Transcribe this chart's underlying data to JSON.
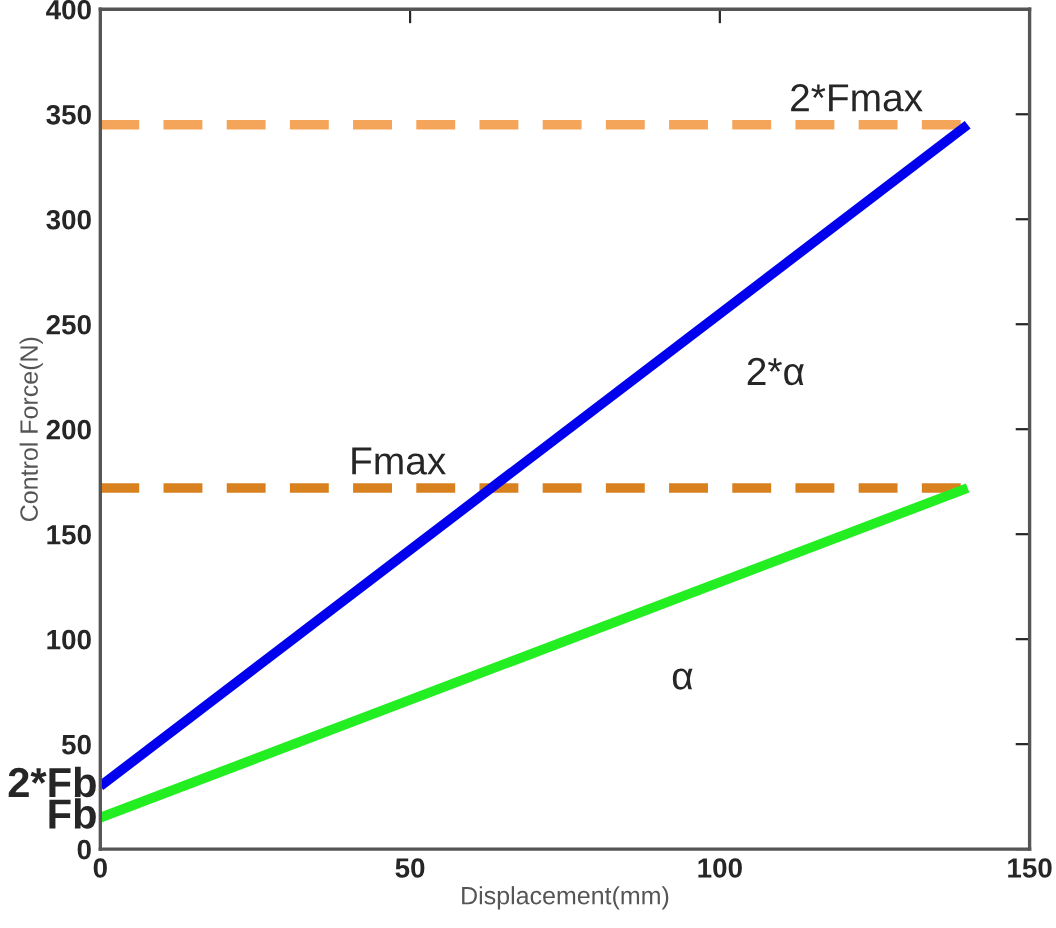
{
  "chart_data": {
    "type": "line",
    "xlabel": "Displacement(mm)",
    "ylabel": "Control Force(N)",
    "xlim": [
      0,
      150
    ],
    "ylim": [
      0,
      400
    ],
    "xticks": [
      0,
      50,
      100,
      150
    ],
    "yticks": [
      0,
      50,
      100,
      150,
      200,
      250,
      300,
      350,
      400
    ],
    "grid": false,
    "legend": false,
    "marker": "none",
    "series": [
      {
        "values": [
          345,
          345
        ],
        "color": "#f5a55a",
        "line_style": "dashed"
      },
      {
        "values": [
          172,
          172
        ],
        "color": "#d9801f",
        "line_style": "dashed"
      },
      {
        "values": [
          30,
          345
        ],
        "color": "#0000ee",
        "line_style": "solid"
      },
      {
        "values": [
          15,
          172
        ],
        "color": "#22ee22",
        "line_style": "solid"
      }
    ],
    "x": [
      0,
      140
    ],
    "annotations": [
      {
        "text": "2*Fmax",
        "x": 122,
        "y": 345
      },
      {
        "text": "Fmax",
        "x": 48,
        "y": 172
      },
      {
        "text": "2*α",
        "x": 100,
        "y": 255
      },
      {
        "text": "α",
        "x": 85,
        "y": 110
      },
      {
        "text": "2*Fb",
        "x": 0,
        "y": 30
      },
      {
        "text": "Fb",
        "x": 0,
        "y": 15
      }
    ]
  }
}
